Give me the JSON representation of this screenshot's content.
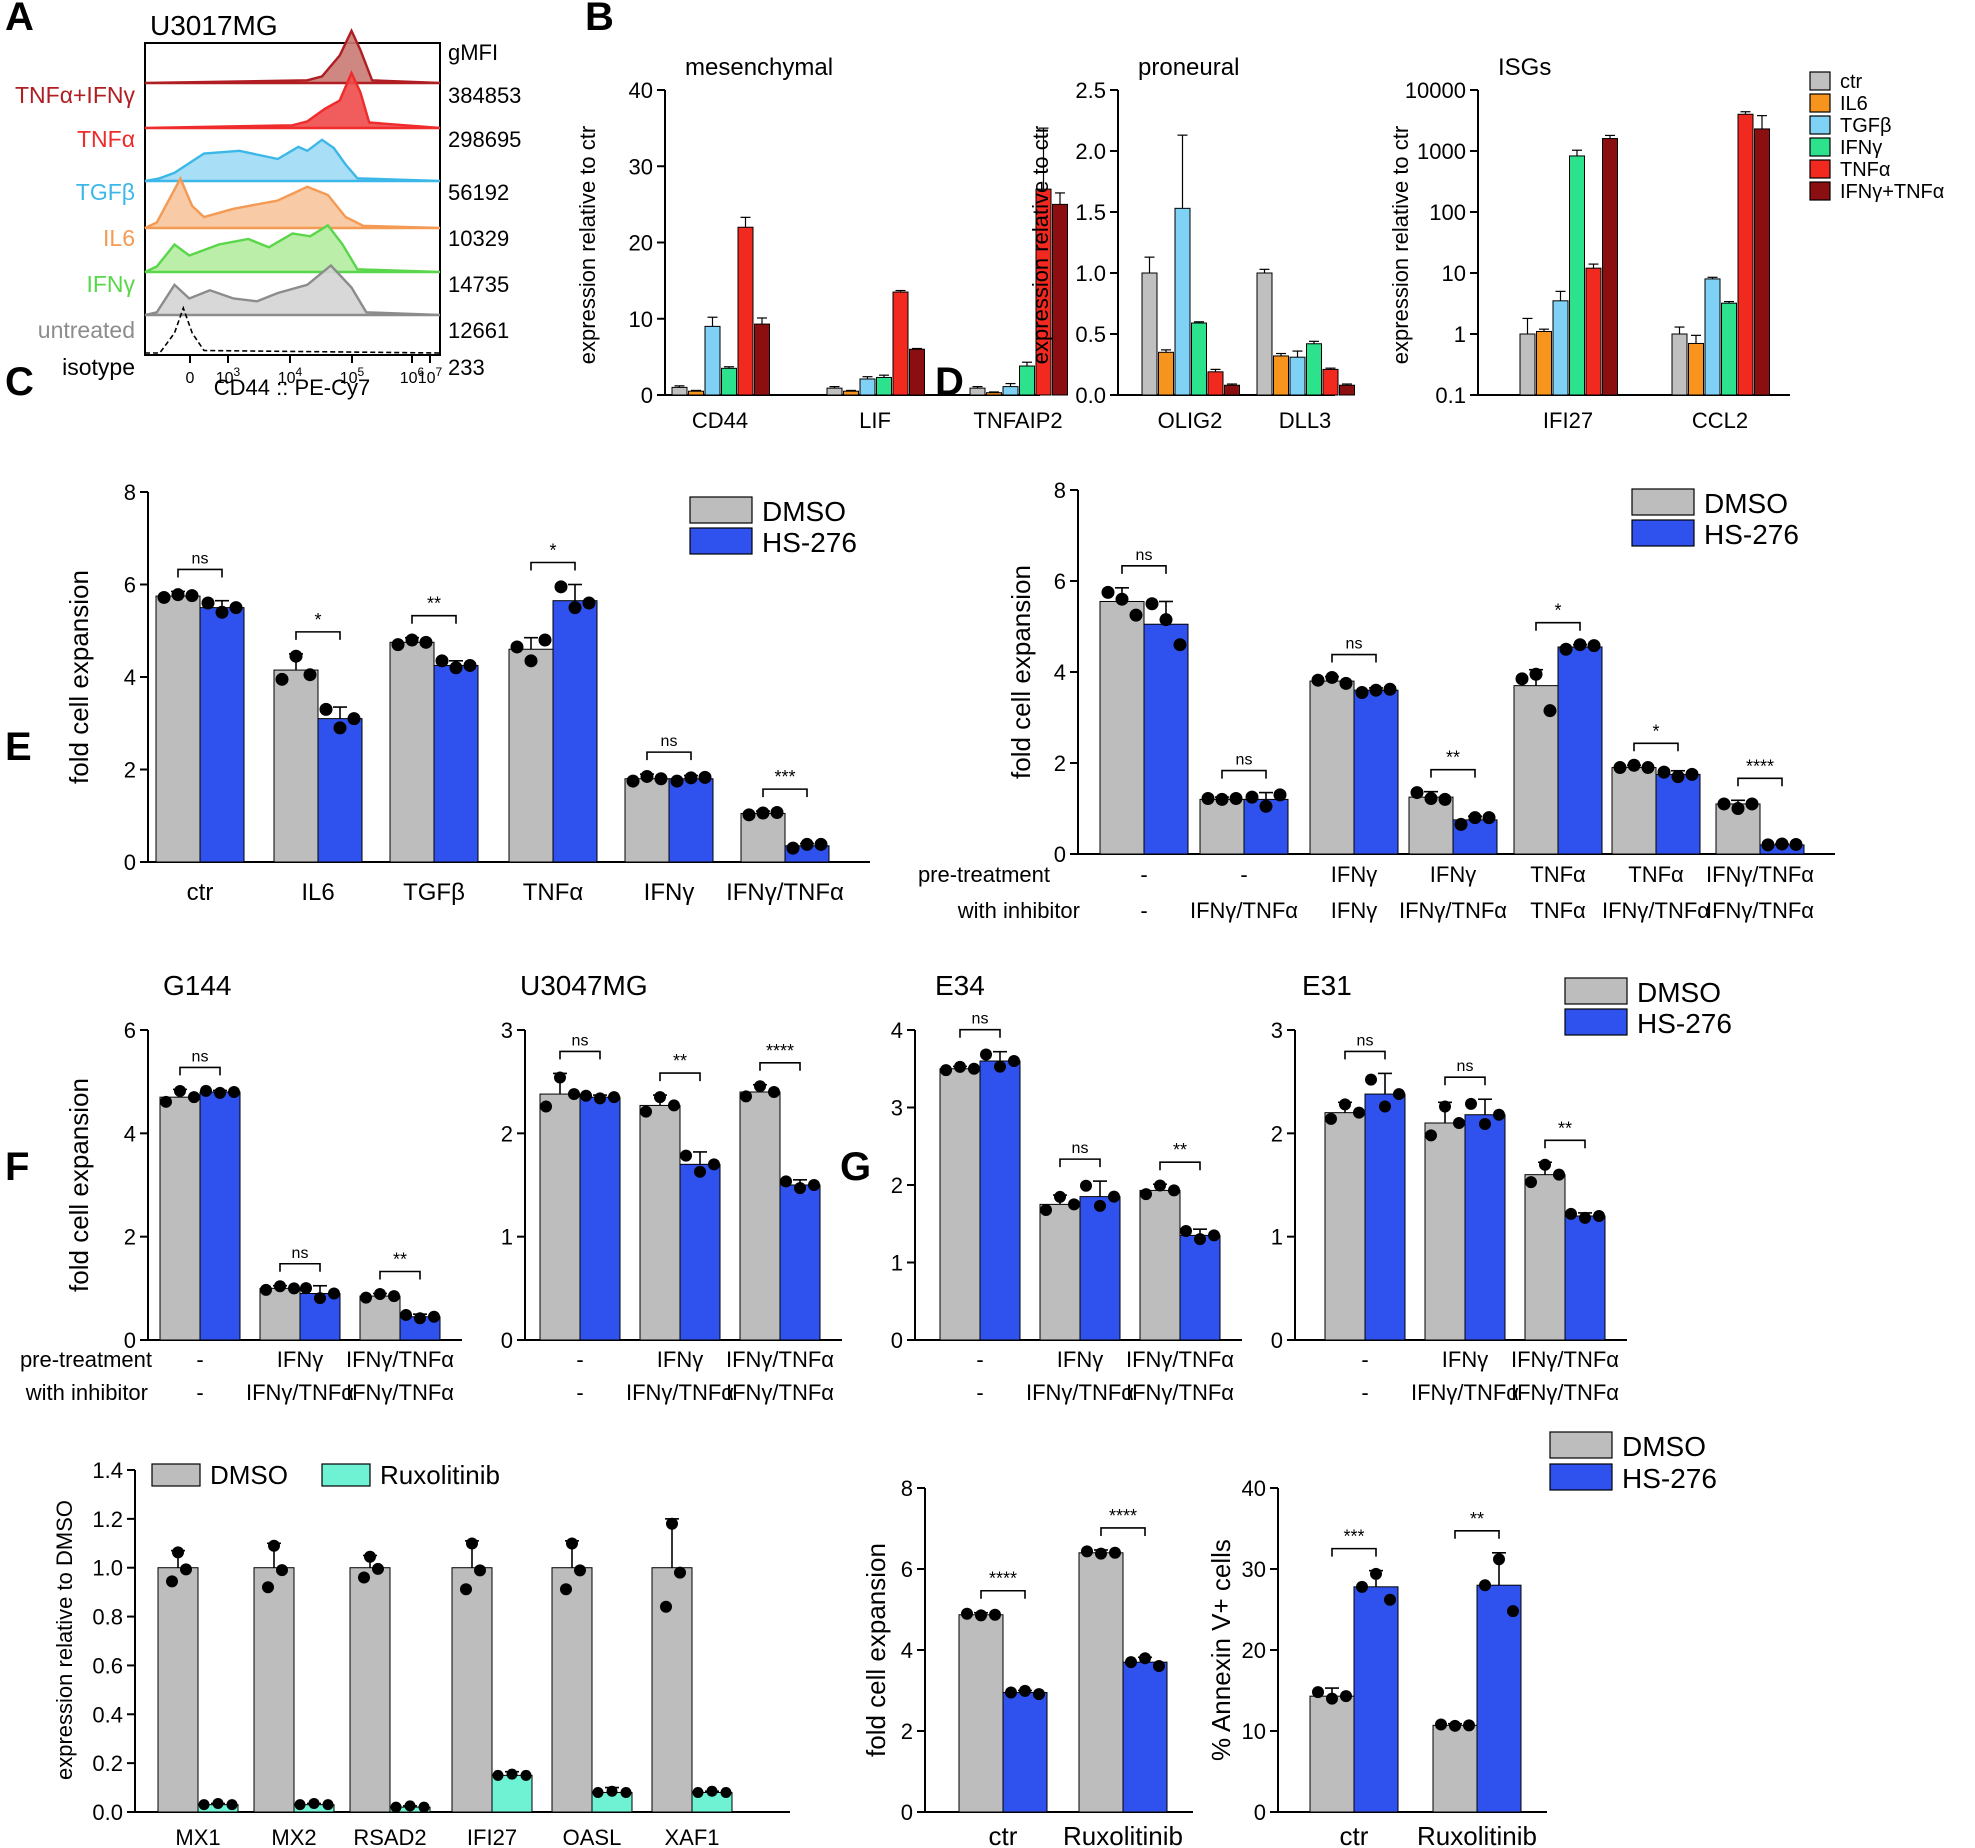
{
  "panel_labels": [
    "A",
    "B",
    "C",
    "D",
    "E",
    "F",
    "G"
  ],
  "chart_data": [
    {
      "id": "A",
      "type": "histogram",
      "title": "U3017MG",
      "stat_header": "gMFI",
      "xlabel": "CD44 :: PE-Cy7",
      "x_ticks": [
        "0",
        "10^3",
        "10^4",
        "10^5",
        "10^6",
        "10^7"
      ],
      "tracks": [
        {
          "name": "TNFα+IFNγ",
          "color": "#b01e23",
          "fill": "#c97a73",
          "gmfi": "384853"
        },
        {
          "name": "TNFα",
          "color": "#ef2b2b",
          "fill": "#f04a4a",
          "gmfi": "298695"
        },
        {
          "name": "TGFβ",
          "color": "#3cb8e8",
          "fill": "#9fdcf5",
          "gmfi": "56192"
        },
        {
          "name": "IL6",
          "color": "#f49a54",
          "fill": "#f7c49b",
          "gmfi": "10329"
        },
        {
          "name": "IFNγ",
          "color": "#59d64a",
          "fill": "#b4ec9e",
          "gmfi": "14735"
        },
        {
          "name": "untreated",
          "color": "#8c8c8c",
          "fill": "#d4d4d4",
          "gmfi": "12661"
        },
        {
          "name": "isotype",
          "color": "#000000",
          "fill": "none",
          "gmfi": "233"
        }
      ]
    },
    {
      "id": "B",
      "type": "bar",
      "legend": [
        {
          "name": "ctr",
          "color": "#c0c0c0"
        },
        {
          "name": "IL6",
          "color": "#f7941d"
        },
        {
          "name": "TGFβ",
          "color": "#7fd1f5"
        },
        {
          "name": "IFNγ",
          "color": "#2de28c"
        },
        {
          "name": "TNFα",
          "color": "#f2291f"
        },
        {
          "name": "IFNγ+TNFα",
          "color": "#8b0f10"
        }
      ],
      "subplots": [
        {
          "title": "mesenchymal",
          "ylabel": "expression relative to ctr",
          "scale": "linear",
          "ylim": [
            0,
            40
          ],
          "yticks": [
            0,
            10,
            20,
            30,
            40
          ],
          "categories": [
            "CD44",
            "LIF",
            "TNFAIP2"
          ],
          "values": [
            [
              1,
              0.5,
              9,
              3.5,
              22,
              9.3
            ],
            [
              0.9,
              0.5,
              2.1,
              2.3,
              13.5,
              6
            ],
            [
              0.9,
              0.3,
              1.1,
              3.8,
              27,
              25
            ]
          ],
          "errors": [
            [
              0.2,
              0.1,
              1.2,
              0.2,
              1.3,
              0.8
            ],
            [
              0.2,
              0.1,
              0.3,
              0.3,
              0.2,
              0.1
            ],
            [
              0.2,
              0.1,
              0.4,
              0.5,
              8,
              1.5
            ]
          ]
        },
        {
          "title": "proneural",
          "ylabel": "expression relative to ctr",
          "scale": "linear",
          "ylim": [
            0,
            2.5
          ],
          "yticks": [
            "0.0",
            "0.5",
            "1.0",
            "1.5",
            "2.0",
            "2.5"
          ],
          "categories": [
            "OLIG2",
            "DLL3"
          ],
          "values": [
            [
              1.0,
              0.35,
              1.53,
              0.59,
              0.19,
              0.08
            ],
            [
              1.0,
              0.32,
              0.31,
              0.42,
              0.21,
              0.08
            ]
          ],
          "errors": [
            [
              0.13,
              0.02,
              0.6,
              0.01,
              0.02,
              0.01
            ],
            [
              0.03,
              0.02,
              0.05,
              0.02,
              0.01,
              0.01
            ]
          ]
        },
        {
          "title": "ISGs",
          "ylabel": "expression relative to ctr",
          "scale": "log",
          "ylim": [
            0.1,
            10000
          ],
          "yticks": [
            "0.1",
            "1",
            "10",
            "100",
            "1000",
            "10000"
          ],
          "categories": [
            "IFI27",
            "CCL2"
          ],
          "values": [
            [
              1.0,
              1.1,
              3.5,
              830,
              12,
              1600
            ],
            [
              1.0,
              0.7,
              8,
              3.2,
              4000,
              2300
            ]
          ],
          "errors": [
            [
              0.8,
              0.1,
              1.5,
              200,
              2,
              200
            ],
            [
              0.3,
              0.25,
              0.5,
              0.2,
              400,
              1500
            ]
          ]
        }
      ]
    },
    {
      "id": "C",
      "type": "bar_dot",
      "ylabel": "fold cell expansion",
      "ylim": [
        0,
        8
      ],
      "yticks": [
        0,
        2,
        4,
        6,
        8
      ],
      "legend": [
        "DMSO",
        "HS-276"
      ],
      "categories": [
        "ctr",
        "IL6",
        "TGFβ",
        "TNFα",
        "IFNγ",
        "IFNγ/TNFα"
      ],
      "dmso": [
        5.75,
        4.15,
        4.75,
        4.6,
        1.8,
        1.05
      ],
      "hs276": [
        5.5,
        3.1,
        4.25,
        5.65,
        1.8,
        0.35
      ],
      "dmso_err": [
        0.1,
        0.35,
        0.1,
        0.25,
        0.1,
        0.05
      ],
      "hs276_err": [
        0.15,
        0.25,
        0.1,
        0.35,
        0.07,
        0.05
      ],
      "dmso_points": [
        [
          5.72,
          5.78,
          5.76
        ],
        [
          3.95,
          4.45,
          4.05
        ],
        [
          4.7,
          4.8,
          4.75
        ],
        [
          4.65,
          4.35,
          4.8
        ],
        [
          1.75,
          1.85,
          1.8
        ],
        [
          1.02,
          1.06,
          1.07
        ]
      ],
      "hs276_points": [
        [
          5.6,
          5.4,
          5.5
        ],
        [
          3.3,
          2.9,
          3.1
        ],
        [
          4.35,
          4.2,
          4.25
        ],
        [
          5.95,
          5.5,
          5.6
        ],
        [
          1.75,
          1.82,
          1.83
        ],
        [
          0.3,
          0.38,
          0.38
        ]
      ],
      "significance": [
        "ns",
        "*",
        "**",
        "*",
        "ns",
        "***"
      ]
    },
    {
      "id": "D",
      "type": "bar_dot",
      "ylabel": "fold cell expansion",
      "ylim": [
        0,
        8
      ],
      "yticks": [
        0,
        2,
        4,
        6,
        8
      ],
      "legend": [
        "DMSO",
        "HS-276"
      ],
      "row_labels": [
        "pre-treatment",
        "with inhibitor"
      ],
      "pretreatment": [
        "-",
        "-",
        "IFNγ",
        "IFNγ",
        "TNFα",
        "TNFα",
        "IFNγ/TNFα"
      ],
      "inhibitor": [
        "-",
        "IFNγ/TNFα",
        "IFNγ",
        "IFNγ/TNFα",
        "TNFα",
        "IFNγ/TNFα",
        "IFNγ/TNFα"
      ],
      "dmso": [
        5.55,
        1.2,
        3.8,
        1.25,
        3.7,
        1.9,
        1.1
      ],
      "hs276": [
        5.05,
        1.2,
        3.6,
        0.75,
        4.55,
        1.75,
        0.2
      ],
      "dmso_err": [
        0.3,
        0.05,
        0.1,
        0.12,
        0.35,
        0.05,
        0.08
      ],
      "hs276_err": [
        0.5,
        0.15,
        0.05,
        0.08,
        0.05,
        0.08,
        0.02
      ],
      "dmso_points": [
        [
          5.75,
          5.6,
          5.25
        ],
        [
          1.22,
          1.2,
          1.22
        ],
        [
          3.82,
          3.88,
          3.75
        ],
        [
          1.35,
          1.22,
          1.2
        ],
        [
          3.85,
          3.95,
          3.15
        ],
        [
          1.9,
          1.95,
          1.9
        ]
      ],
      "hs276_points": [
        [
          5.5,
          5.15,
          4.6
        ],
        [
          1.25,
          1.05,
          1.3
        ],
        [
          3.55,
          3.6,
          3.62
        ],
        [
          0.65,
          0.8,
          0.8
        ],
        [
          4.5,
          4.6,
          4.58
        ],
        [
          1.8,
          1.7,
          1.75
        ]
      ],
      "dmso_points_last": [
        1.1,
        1.0,
        1.1
      ],
      "hs276_points_last": [
        0.2,
        0.22,
        0.21
      ],
      "significance": [
        "ns",
        "ns",
        "ns",
        "**",
        "*",
        "*",
        "****"
      ]
    },
    {
      "id": "E",
      "type": "bar_dot_multi",
      "ylabel": "fold cell expansion",
      "legend": [
        "DMSO",
        "HS-276"
      ],
      "row_labels": [
        "pre-treatment",
        "with inhibitor"
      ],
      "pretreatment": [
        "-",
        "IFNγ",
        "IFNγ/TNFα"
      ],
      "inhibitor": [
        "-",
        "IFNγ/TNFα",
        "IFNγ/TNFα"
      ],
      "subplots": [
        {
          "title": "G144",
          "ylim": [
            0,
            6
          ],
          "yticks": [
            0,
            2,
            4,
            6
          ],
          "dmso": [
            4.7,
            1.0,
            0.85
          ],
          "hs276": [
            4.8,
            0.9,
            0.45
          ],
          "dmso_err": [
            0.15,
            0.05,
            0.05
          ],
          "hs276_err": [
            0.03,
            0.15,
            0.05
          ],
          "significance": [
            "ns",
            "ns",
            "**"
          ]
        },
        {
          "title": "U3047MG",
          "ylim": [
            0,
            3
          ],
          "yticks": [
            0,
            1,
            2,
            3
          ],
          "dmso": [
            2.38,
            2.27,
            2.4
          ],
          "hs276": [
            2.35,
            1.7,
            1.5
          ],
          "dmso_err": [
            0.2,
            0.1,
            0.07
          ],
          "hs276_err": [
            0.02,
            0.12,
            0.05
          ],
          "significance": [
            "ns",
            "**",
            "****"
          ]
        },
        {
          "title": "E34",
          "ylim": [
            0,
            4
          ],
          "yticks": [
            0,
            1,
            2,
            3,
            4
          ],
          "dmso": [
            3.5,
            1.75,
            1.93
          ],
          "hs276": [
            3.6,
            1.85,
            1.35
          ],
          "dmso_err": [
            0.03,
            0.12,
            0.08
          ],
          "hs276_err": [
            0.12,
            0.2,
            0.08
          ],
          "significance": [
            "ns",
            "ns",
            "**"
          ]
        },
        {
          "title": "E31",
          "ylim": [
            0,
            3
          ],
          "yticks": [
            0,
            1,
            2,
            3
          ],
          "dmso": [
            2.2,
            2.1,
            1.6
          ],
          "hs276": [
            2.38,
            2.18,
            1.2
          ],
          "dmso_err": [
            0.1,
            0.2,
            0.12
          ],
          "hs276_err": [
            0.2,
            0.15,
            0.03
          ],
          "significance": [
            "ns",
            "ns",
            "**"
          ]
        }
      ]
    },
    {
      "id": "F",
      "type": "bar_dot",
      "ylabel": "expression relative to DMSO",
      "ylim": [
        0,
        1.4
      ],
      "yticks": [
        "0.0",
        "0.2",
        "0.4",
        "0.6",
        "0.8",
        "1.0",
        "1.2",
        "1.4"
      ],
      "legend": [
        "DMSO",
        "Ruxolitinib"
      ],
      "categories": [
        "MX1",
        "MX2",
        "RSAD2",
        "IFI27",
        "OASL",
        "XAF1"
      ],
      "dmso": [
        1.0,
        1.0,
        1.0,
        1.0,
        1.0,
        1.0
      ],
      "ruxolitinib": [
        0.03,
        0.03,
        0.02,
        0.15,
        0.08,
        0.08
      ],
      "dmso_err": [
        0.07,
        0.1,
        0.05,
        0.11,
        0.11,
        0.2
      ],
      "ruxolitinib_err": [
        0.005,
        0.005,
        0.005,
        0.015,
        0.02,
        0.005
      ]
    },
    {
      "id": "G",
      "type": "bar_dot_multi",
      "legend": [
        "DMSO",
        "HS-276"
      ],
      "categories": [
        "ctr",
        "Ruxolitinib"
      ],
      "subplots": [
        {
          "ylabel": "fold cell expansion",
          "ylim": [
            0,
            8
          ],
          "yticks": [
            0,
            2,
            4,
            6,
            8
          ],
          "dmso": [
            4.87,
            6.4
          ],
          "hs276": [
            2.95,
            3.7
          ],
          "dmso_err": [
            0.05,
            0.07
          ],
          "hs276_err": [
            0.05,
            0.12
          ],
          "significance": [
            "****",
            "****"
          ]
        },
        {
          "ylabel": "% Annexin V+ cells",
          "ylim": [
            0,
            40
          ],
          "yticks": [
            0,
            10,
            20,
            30,
            40
          ],
          "dmso": [
            14.3,
            10.7
          ],
          "hs276": [
            27.8,
            28
          ],
          "dmso_err": [
            1.0,
            0.2
          ],
          "hs276_err": [
            2.0,
            4.0
          ],
          "significance": [
            "***",
            "**"
          ]
        }
      ]
    }
  ]
}
